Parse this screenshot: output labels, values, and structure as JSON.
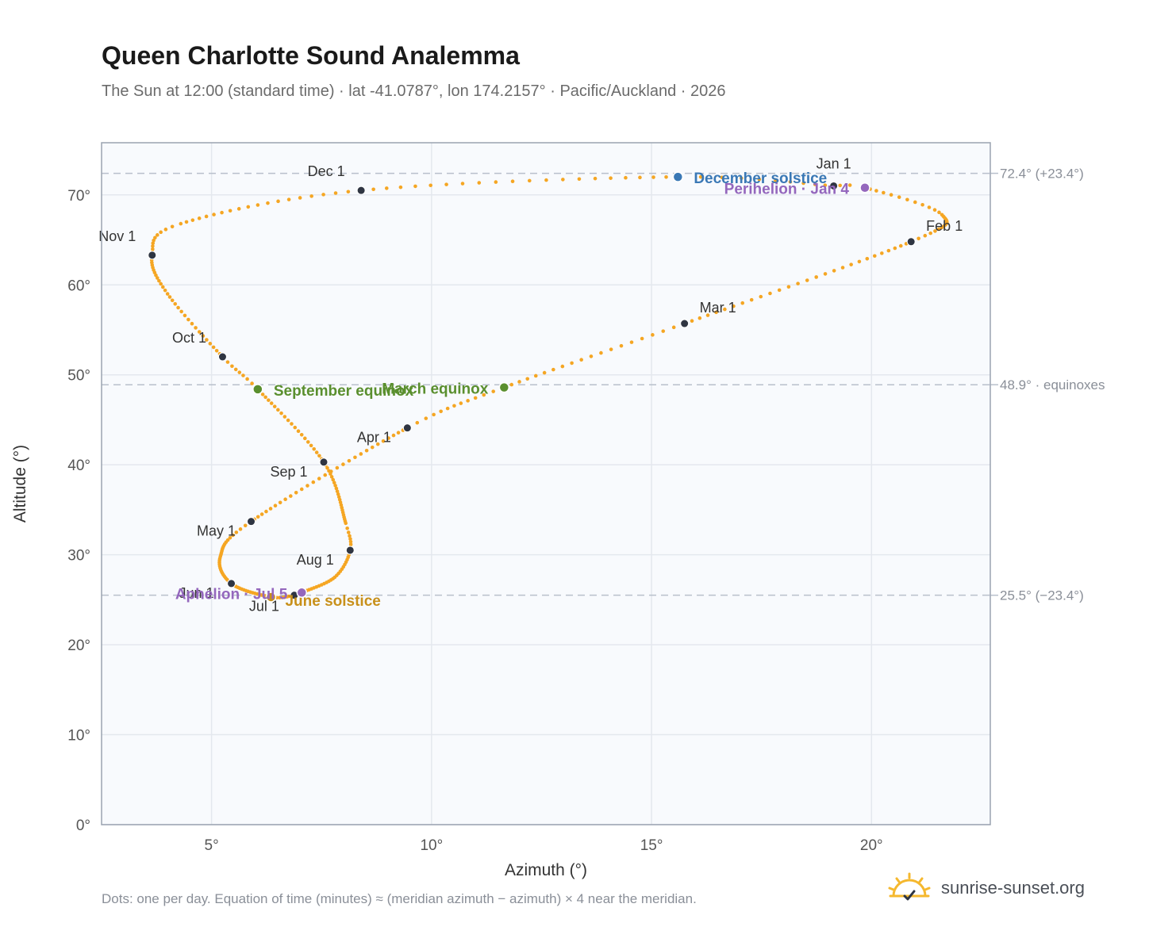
{
  "title": "Queen Charlotte Sound Analemma",
  "subtitle": "The Sun at 12:00 (standard time) · lat -41.0787°, lon 174.2157° · Pacific/Auckland · 2026",
  "footnote": "Dots: one per day. Equation of time (minutes) ≈ (meridian azimuth − azimuth) × 4 near the meridian.",
  "brand": "sunrise-sunset.org",
  "icons": {
    "brand_logo": "sun-check-icon"
  },
  "colors": {
    "path": "#f5a623",
    "month_dot": "#2f3542",
    "equinox": "#5a8f2e",
    "december_solstice": "#3a78b5",
    "june_solstice": "#c8901a",
    "perihelion": "#9467bd",
    "aphelion": "#9467bd",
    "reference_line": "#b8c0cc",
    "plot_bg": "#f8fafd",
    "grid": "#e4e8ee"
  },
  "chart_data": {
    "type": "scatter",
    "title": "Queen Charlotte Sound Analemma",
    "xlabel": "Azimuth (°)",
    "ylabel": "Altitude (°)",
    "xlim": [
      2.5,
      22.7
    ],
    "ylim": [
      0,
      75.8
    ],
    "xticks": [
      5,
      10,
      15,
      20
    ],
    "xtick_labels": [
      "5°",
      "10°",
      "15°",
      "20°"
    ],
    "yticks": [
      0,
      10,
      20,
      30,
      40,
      50,
      60,
      70
    ],
    "ytick_labels": [
      "0°",
      "10°",
      "20°",
      "30°",
      "40°",
      "50°",
      "60°",
      "70°"
    ],
    "grid": true,
    "reference_lines": [
      {
        "y": 72.4,
        "label": "72.4° (+23.4°)"
      },
      {
        "y": 48.9,
        "label": "48.9° · equinoxes"
      },
      {
        "y": 25.5,
        "label": "25.5° (−23.4°)"
      }
    ],
    "daily_path_anchors": [
      {
        "doy": 0,
        "az": 19.14,
        "alt": 71.0
      },
      {
        "doy": 3,
        "az": 19.85,
        "alt": 70.8
      },
      {
        "doy": 15,
        "az": 21.6,
        "alt": 67.8
      },
      {
        "doy": 31,
        "az": 20.9,
        "alt": 64.8
      },
      {
        "doy": 59,
        "az": 15.75,
        "alt": 55.7
      },
      {
        "doy": 78,
        "az": 11.65,
        "alt": 48.6
      },
      {
        "doy": 90,
        "az": 9.45,
        "alt": 44.1
      },
      {
        "doy": 120,
        "az": 5.9,
        "alt": 33.7
      },
      {
        "doy": 135,
        "az": 5.2,
        "alt": 29.8
      },
      {
        "doy": 151,
        "az": 5.45,
        "alt": 26.8
      },
      {
        "doy": 171,
        "az": 6.35,
        "alt": 25.3
      },
      {
        "doy": 181,
        "az": 6.88,
        "alt": 25.5
      },
      {
        "doy": 185,
        "az": 7.05,
        "alt": 25.8
      },
      {
        "doy": 200,
        "az": 7.8,
        "alt": 27.5
      },
      {
        "doy": 212,
        "az": 8.15,
        "alt": 30.5
      },
      {
        "doy": 220,
        "az": 8.05,
        "alt": 33.5
      },
      {
        "doy": 243,
        "az": 7.55,
        "alt": 40.3
      },
      {
        "doy": 265,
        "az": 6.05,
        "alt": 48.4
      },
      {
        "doy": 273,
        "az": 5.25,
        "alt": 52.0
      },
      {
        "doy": 290,
        "az": 4.0,
        "alt": 59.0
      },
      {
        "doy": 304,
        "az": 3.65,
        "alt": 63.3
      },
      {
        "doy": 315,
        "az": 4.3,
        "alt": 66.8
      },
      {
        "doy": 334,
        "az": 8.4,
        "alt": 70.5
      },
      {
        "doy": 355,
        "az": 15.6,
        "alt": 72.0
      },
      {
        "doy": 365,
        "az": 19.14,
        "alt": 71.0
      }
    ],
    "month_markers": [
      {
        "label": "Jan 1",
        "az": 19.14,
        "alt": 71.0,
        "lx": 0,
        "ly": -22
      },
      {
        "label": "Feb 1",
        "az": 20.9,
        "alt": 64.8,
        "lx": 42,
        "ly": -14
      },
      {
        "label": "Mar 1",
        "az": 15.75,
        "alt": 55.7,
        "lx": 42,
        "ly": -14
      },
      {
        "label": "Apr 1",
        "az": 9.45,
        "alt": 44.1,
        "lx": -42,
        "ly": 18
      },
      {
        "label": "May 1",
        "az": 5.9,
        "alt": 33.7,
        "lx": -44,
        "ly": 18
      },
      {
        "label": "Jun 1",
        "az": 5.45,
        "alt": 26.8,
        "lx": -44,
        "ly": 18
      },
      {
        "label": "Jul 1",
        "az": 6.88,
        "alt": 25.5,
        "lx": -38,
        "ly": 20
      },
      {
        "label": "Aug 1",
        "az": 8.15,
        "alt": 30.5,
        "lx": -44,
        "ly": 18
      },
      {
        "label": "Sep 1",
        "az": 7.55,
        "alt": 40.3,
        "lx": -44,
        "ly": 18
      },
      {
        "label": "Oct 1",
        "az": 5.25,
        "alt": 52.0,
        "lx": -42,
        "ly": -18
      },
      {
        "label": "Nov 1",
        "az": 3.65,
        "alt": 63.3,
        "lx": -44,
        "ly": -18
      },
      {
        "label": "Dec 1",
        "az": 8.4,
        "alt": 70.5,
        "lx": -44,
        "ly": -18
      }
    ],
    "events": [
      {
        "label": "December solstice",
        "az": 15.6,
        "alt": 72.0,
        "color": "#3a78b5",
        "anchor": "start",
        "lx": 20,
        "ly": 8
      },
      {
        "label": "Perihelion · Jan 4",
        "az": 19.85,
        "alt": 70.8,
        "color": "#9467bd",
        "anchor": "end",
        "lx": -20,
        "ly": 8
      },
      {
        "label": "March equinox",
        "az": 11.65,
        "alt": 48.6,
        "color": "#5a8f2e",
        "anchor": "end",
        "lx": -20,
        "ly": 8
      },
      {
        "label": "September equinox",
        "az": 6.05,
        "alt": 48.4,
        "color": "#5a8f2e",
        "anchor": "start",
        "lx": 20,
        "ly": 8
      },
      {
        "label": "June solstice",
        "az": 6.35,
        "alt": 25.3,
        "color": "#c8901a",
        "anchor": "start",
        "lx": 18,
        "ly": 11
      },
      {
        "label": "Aphelion · Jul 5",
        "az": 7.05,
        "alt": 25.8,
        "color": "#9467bd",
        "anchor": "end",
        "lx": -18,
        "ly": 8
      }
    ]
  }
}
